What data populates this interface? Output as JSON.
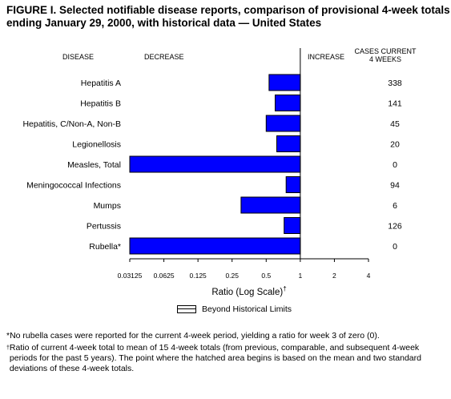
{
  "title": {
    "line1": "FIGURE I. Selected notifiable disease reports, comparison of provisional 4-week totals",
    "line2": "ending January 29, 2000, with historical data — United States"
  },
  "headers": {
    "disease": "DISEASE",
    "decrease": "DECREASE",
    "increase": "INCREASE",
    "cases_line1": "CASES CURRENT",
    "cases_line2": "4 WEEKS"
  },
  "legend": {
    "label": "Beyond Historical Limits"
  },
  "footnotes": {
    "n1_mark": "*",
    "n1": "No rubella cases were reported for the current 4-week period, yielding a ratio for week 3 of zero (0).",
    "n2_mark": "†",
    "n2": "Ratio of current 4-week total to mean of 15 4-week totals (from previous, comparable, and subsequent 4-week periods for the past 5 years). The point where the hatched area begins is based on the mean and two standard deviations of these 4-week totals."
  },
  "colors": {
    "bar": "#0000ff",
    "bar_stroke": "#000000"
  },
  "chart_data": {
    "type": "bar",
    "orientation": "horizontal",
    "xscale": "log2",
    "xlabel": "Ratio (Log Scale)",
    "xlabel_mark": "†",
    "xlim": [
      0.03125,
      4
    ],
    "xticks": [
      0.03125,
      0.0625,
      0.125,
      0.25,
      0.5,
      1,
      2,
      4
    ],
    "xtick_labels": [
      "0.03125",
      "0.0625",
      "0.125",
      "0.25",
      "0.5",
      "1",
      "2",
      "4"
    ],
    "baseline": 1,
    "categories": [
      "Hepatitis A",
      "Hepatitis B",
      "Hepatitis, C/Non-A, Non-B",
      "Legionellosis",
      "Measles, Total",
      "Meningococcal Infections",
      "Mumps",
      "Pertussis",
      "Rubella*"
    ],
    "values": [
      0.53,
      0.6,
      0.5,
      0.62,
      0.03125,
      0.75,
      0.3,
      0.72,
      0.03125
    ],
    "cases_current_4_weeks": [
      "338",
      "141",
      "45",
      "20",
      "0",
      "94",
      "6",
      "126",
      "0"
    ]
  }
}
